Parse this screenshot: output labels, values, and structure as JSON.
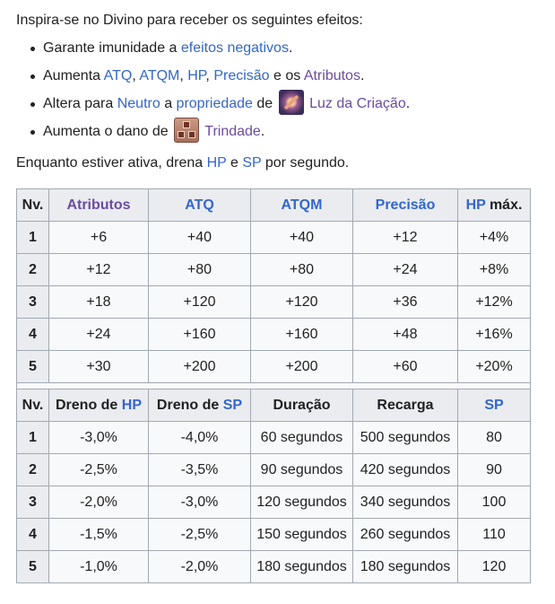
{
  "intro": "Inspira-se no Divino para receber os seguintes efeitos:",
  "bullets": {
    "b1": {
      "t1": "Garante imunidade a ",
      "link": "efeitos negativos",
      "t2": "."
    },
    "b2": {
      "t1": "Aumenta ",
      "atq": "ATQ",
      "sep1": ", ",
      "atqm": "ATQM",
      "sep2": ", ",
      "hp": "HP",
      "sep3": ", ",
      "precisao": "Precisão",
      "t2": " e os ",
      "atributos": "Atributos",
      "t3": "."
    },
    "b3": {
      "t1": "Altera para ",
      "neutro": "Neutro",
      "t2": " a ",
      "propriedade": "propriedade",
      "t3": " de ",
      "skill": "Luz da Criação",
      "t4": "."
    },
    "b4": {
      "t1": "Aumenta o dano de ",
      "skill": "Trindade",
      "t2": "."
    }
  },
  "drain": {
    "t1": "Enquanto estiver ativa, drena ",
    "hp": "HP",
    "t2": " e ",
    "sp": "SP",
    "t3": " por segundo."
  },
  "table1": {
    "headers": [
      "Nv.",
      "Atributos",
      "ATQ",
      "ATQM",
      "Precisão",
      "HP",
      " máx."
    ],
    "rows": [
      [
        "1",
        "+6",
        "+40",
        "+40",
        "+12",
        "+4%"
      ],
      [
        "2",
        "+12",
        "+80",
        "+80",
        "+24",
        "+8%"
      ],
      [
        "3",
        "+18",
        "+120",
        "+120",
        "+36",
        "+12%"
      ],
      [
        "4",
        "+24",
        "+160",
        "+160",
        "+48",
        "+16%"
      ],
      [
        "5",
        "+30",
        "+200",
        "+200",
        "+60",
        "+20%"
      ]
    ]
  },
  "table2": {
    "headers": [
      "Nv.",
      "Dreno de ",
      "HP",
      "Dreno de ",
      "SP",
      "Duração",
      "Recarga",
      "SP"
    ],
    "rows": [
      [
        "1",
        "-3,0%",
        "-4,0%",
        "60 segundos",
        "500 segundos",
        "80"
      ],
      [
        "2",
        "-2,5%",
        "-3,5%",
        "90 segundos",
        "420 segundos",
        "90"
      ],
      [
        "3",
        "-2,0%",
        "-3,0%",
        "120 segundos",
        "340 segundos",
        "100"
      ],
      [
        "4",
        "-1,5%",
        "-2,5%",
        "150 segundos",
        "260 segundos",
        "110"
      ],
      [
        "5",
        "-1,0%",
        "-2,0%",
        "180 segundos",
        "180 segundos",
        "120"
      ]
    ]
  },
  "colors": {
    "link": "#3366cc",
    "link_visited": "#6b4ba1",
    "header_bg": "#eaecf0",
    "cell_bg": "#f8f9fa",
    "border": "#a2a9b1"
  },
  "icons": [
    "luz-da-criacao-skill-icon",
    "trindade-skill-icon"
  ]
}
